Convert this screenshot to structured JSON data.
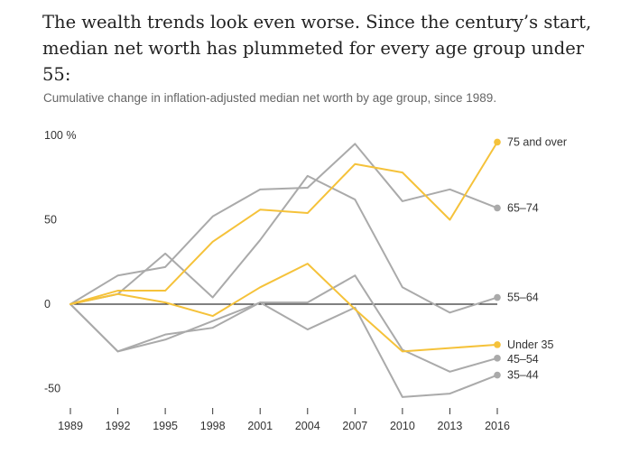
{
  "headline": "The wealth trends look even worse. Since the century’s start, median net worth has plummeted for every age group under 55:",
  "chart_data": {
    "type": "line",
    "title": "Cumulative change in inflation-adjusted median net worth by age group, since 1989.",
    "xlabel": "",
    "ylabel": "",
    "x": [
      1989,
      1992,
      1995,
      1998,
      2001,
      2004,
      2007,
      2010,
      2013,
      2016
    ],
    "ylim": [
      -55,
      105
    ],
    "yticks": [
      {
        "value": 100,
        "label": "100 %"
      },
      {
        "value": 50,
        "label": "50"
      },
      {
        "value": 0,
        "label": "0"
      },
      {
        "value": -50,
        "label": "-50"
      }
    ],
    "colors": {
      "highlight": "#f5c23a",
      "muted": "#aaaaaa",
      "zero_line": "#000000"
    },
    "series": [
      {
        "name": "75 and over",
        "color": "#f5c23a",
        "values": [
          0,
          8,
          8,
          37,
          56,
          54,
          83,
          78,
          50,
          96
        ]
      },
      {
        "name": "65–74",
        "color": "#aaaaaa",
        "values": [
          0,
          17,
          22,
          52,
          68,
          69,
          95,
          61,
          68,
          57
        ]
      },
      {
        "name": "55–64",
        "color": "#aaaaaa",
        "values": [
          0,
          6,
          30,
          4,
          38,
          76,
          62,
          10,
          -5,
          4
        ]
      },
      {
        "name": "Under 35",
        "color": "#f5c23a",
        "values": [
          0,
          6,
          1,
          -7,
          10,
          24,
          -3,
          -28,
          -26,
          -24
        ]
      },
      {
        "name": "45–54",
        "color": "#aaaaaa",
        "values": [
          0,
          -28,
          -18,
          -14,
          1,
          1,
          17,
          -27,
          -40,
          -32
        ]
      },
      {
        "name": "35–44",
        "color": "#aaaaaa",
        "values": [
          0,
          -28,
          -21,
          -10,
          1,
          -15,
          -2,
          -55,
          -53,
          -42
        ]
      }
    ],
    "grid": false
  }
}
